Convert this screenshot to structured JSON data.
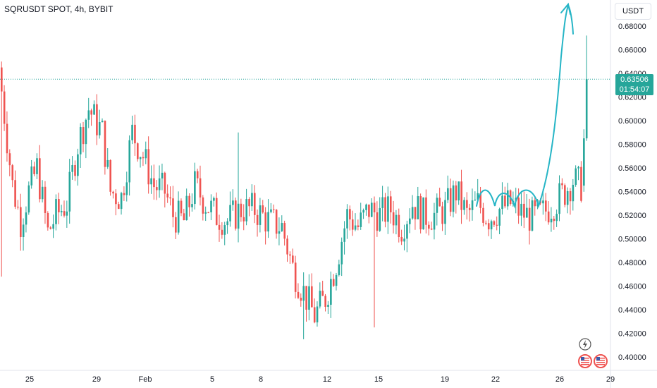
{
  "header": {
    "symbol_title": "SQRUSDT SPOT, 4h, BYBIT"
  },
  "price_axis": {
    "currency": "USDT"
  },
  "last_price": {
    "value": "0.63506",
    "countdown": "01:54:07",
    "color": "#26a69a"
  },
  "colors": {
    "up": "#26a69a",
    "down": "#ef5350",
    "drawing": "#26b5c6"
  },
  "icons": [
    "lightning-icon",
    "us-flag-icon",
    "us-flag-icon"
  ],
  "chart_data": {
    "type": "candlestick",
    "title": "SQRUSDT SPOT, 4h, BYBIT",
    "ylim": [
      0.39,
      0.695
    ],
    "y_ticks": [
      0.68,
      0.66,
      0.64,
      0.62,
      0.6,
      0.58,
      0.56,
      0.54,
      0.52,
      0.5,
      0.48,
      0.46,
      0.44,
      0.42,
      0.4
    ],
    "x_ticks": [
      "25",
      "29",
      "Feb",
      "5",
      "8",
      "12",
      "15",
      "19",
      "22",
      "26",
      "29"
    ],
    "last_price": 0.63506,
    "grid": false,
    "candles": []
  }
}
